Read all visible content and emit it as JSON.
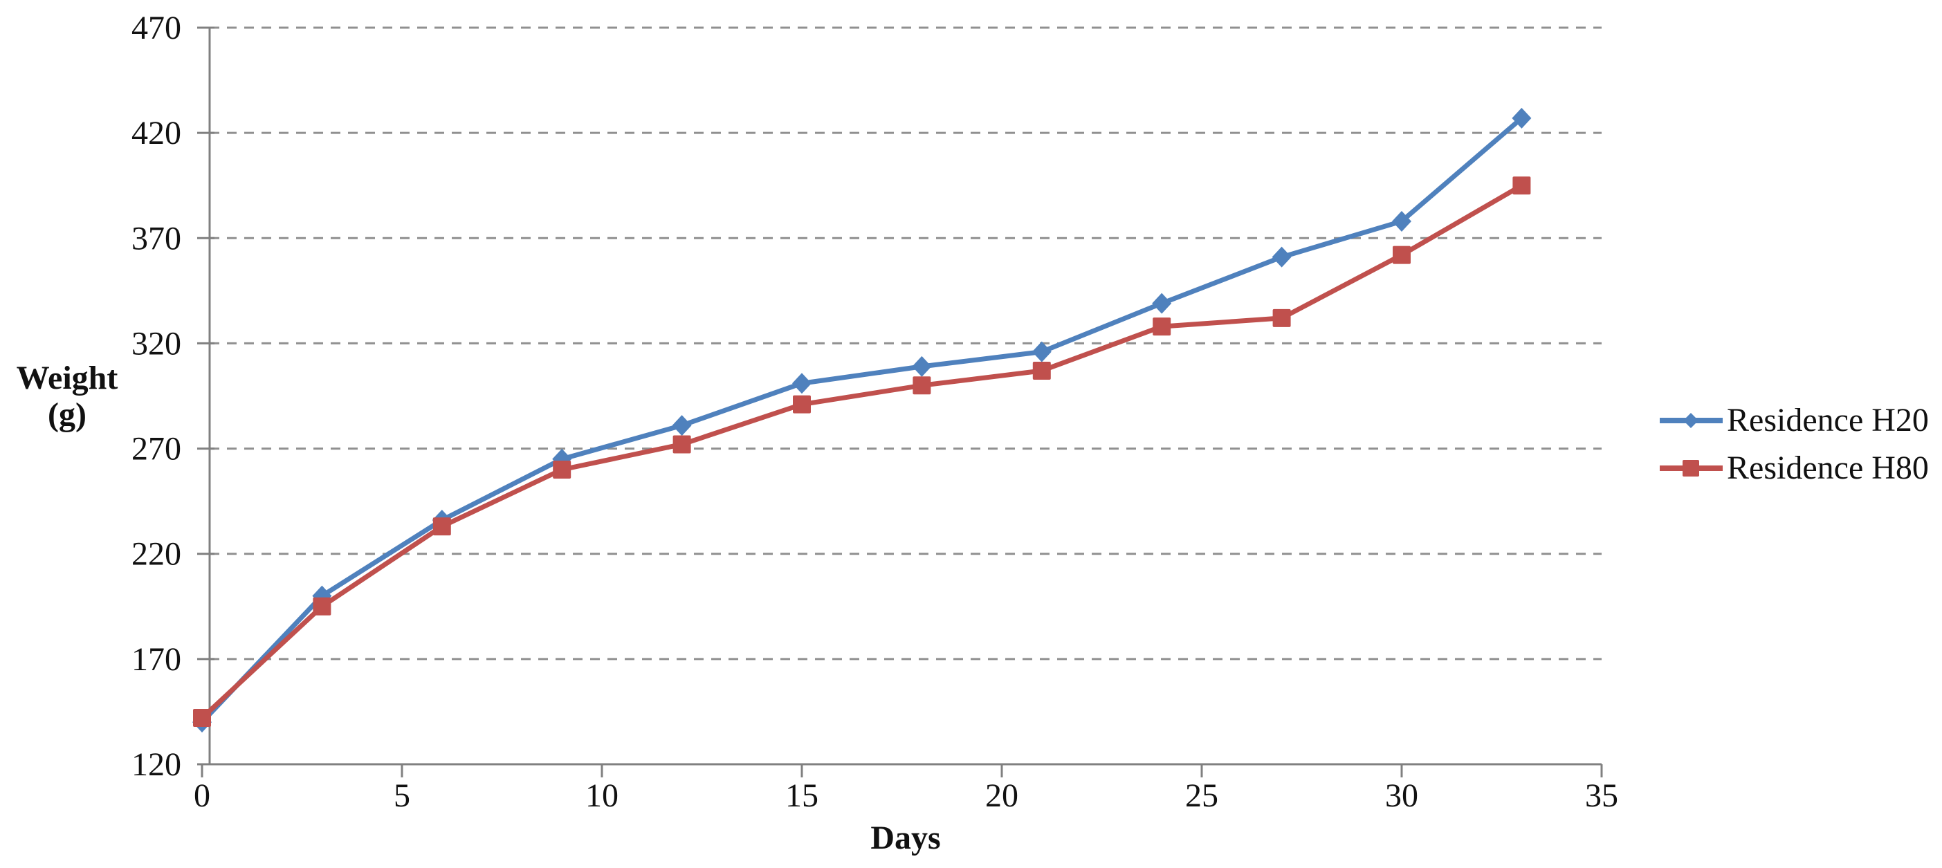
{
  "chart_data": {
    "type": "line",
    "title": "",
    "xlabel": "Days",
    "ylabel": "Weight (g)",
    "ylabel_lines": [
      "Weight",
      "(g)"
    ],
    "x": [
      0,
      3,
      6,
      9,
      12,
      15,
      18,
      21,
      24,
      27,
      30,
      33
    ],
    "series": [
      {
        "name": "Residence H20",
        "color": "#4f81bd",
        "marker": "diamond",
        "values": [
          140,
          200,
          236,
          265,
          281,
          301,
          309,
          316,
          339,
          361,
          378,
          427
        ]
      },
      {
        "name": "Residence H80",
        "color": "#c0504d",
        "marker": "square",
        "values": [
          142,
          195,
          233,
          260,
          272,
          291,
          300,
          307,
          328,
          332,
          362,
          395
        ]
      }
    ],
    "xticks": [
      0,
      5,
      10,
      15,
      20,
      25,
      30,
      35
    ],
    "yticks": [
      120,
      170,
      220,
      270,
      320,
      370,
      420,
      470
    ],
    "xlim": [
      0,
      35
    ],
    "ylim": [
      120,
      470
    ],
    "grid": "horizontal-dashed",
    "legend_position": "right-middle"
  },
  "colors": {
    "grid": "#909090",
    "axis": "#808080",
    "text": "#111111",
    "series_h20": "#4f81bd",
    "series_h80": "#c0504d"
  }
}
